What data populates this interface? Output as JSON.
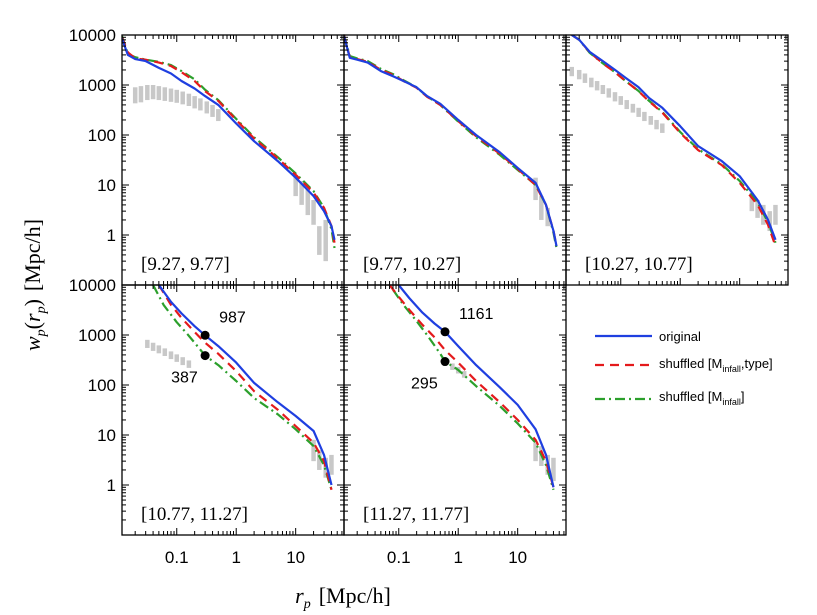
{
  "chart_data": {
    "type": "line",
    "ylabel_parts": {
      "w": "w",
      "w_sub": "p",
      "open": "(",
      "r": "r",
      "r_sub": "p",
      "close": ")",
      "unit": "[Mpc/h]"
    },
    "xlabel_parts": {
      "r": "r",
      "r_sub": "p",
      "unit": "[Mpc/h]"
    },
    "x_ticks": [
      {
        "v": 0.1,
        "label": "0.1"
      },
      {
        "v": 1,
        "label": "1"
      },
      {
        "v": 10,
        "label": "10"
      }
    ],
    "y_ticks": [
      {
        "v": 1,
        "label": "1"
      },
      {
        "v": 10,
        "label": "10"
      },
      {
        "v": 100,
        "label": "100"
      },
      {
        "v": 1000,
        "label": "1000"
      },
      {
        "v": 10000,
        "label": "10000"
      }
    ],
    "xlim": [
      0.012,
      65
    ],
    "ylim": [
      0.1,
      10000
    ],
    "legend": {
      "placement": "right of lower row",
      "items": [
        {
          "key": "original",
          "text": "original",
          "color": "#1f3fe0",
          "dash": "solid"
        },
        {
          "key": "shuffled_type",
          "text_parts": [
            "shuffled [M",
            "infall",
            ",type]"
          ],
          "color": "#e41a1c",
          "dash": "dashed"
        },
        {
          "key": "shuffled_m",
          "text_parts": [
            "shuffled [M",
            "infall",
            "]"
          ],
          "color": "#2ca02c",
          "dash": "dashdot"
        }
      ]
    },
    "colors": {
      "original": "#1f3fe0",
      "shuffled_type": "#e41a1c",
      "shuffled_m": "#2ca02c",
      "observed": "#c8c8c8",
      "marker": "#000000"
    },
    "panels": [
      {
        "label": "[9.27, 9.77]",
        "series": {
          "original": {
            "x": [
              0.012,
              0.015,
              0.02,
              0.03,
              0.05,
              0.08,
              0.12,
              0.2,
              0.3,
              0.5,
              1,
              2,
              5,
              10,
              20,
              30,
              40,
              45
            ],
            "y": [
              8500,
              4000,
              3300,
              3000,
              2200,
              1700,
              1200,
              850,
              600,
              400,
              170,
              75,
              30,
              14,
              6,
              3,
              1.5,
              0.8
            ]
          },
          "shuffled_type": {
            "x": [
              0.012,
              0.015,
              0.02,
              0.03,
              0.05,
              0.08,
              0.12,
              0.2,
              0.3,
              0.5,
              1,
              2,
              5,
              10,
              20,
              30,
              40,
              45
            ],
            "y": [
              9000,
              4500,
              3400,
              3200,
              2800,
              2400,
              1800,
              1200,
              750,
              480,
              200,
              85,
              34,
              16,
              7,
              3.5,
              1.5,
              0.7
            ]
          },
          "shuffled_m": {
            "x": [
              0.012,
              0.015,
              0.02,
              0.03,
              0.05,
              0.08,
              0.12,
              0.2,
              0.3,
              0.5,
              1,
              2,
              5,
              10,
              20,
              30,
              40,
              45
            ],
            "y": [
              9500,
              4200,
              3600,
              3200,
              2900,
              2500,
              1900,
              1300,
              800,
              500,
              210,
              90,
              36,
              17,
              7.5,
              3.5,
              1.3,
              0.55
            ]
          },
          "observed": {
            "x": [
              0.02,
              0.025,
              0.032,
              0.04,
              0.05,
              0.063,
              0.08,
              0.1,
              0.126,
              0.16,
              0.2,
              0.25,
              0.32,
              0.4,
              0.5,
              10,
              12.6,
              16,
              20,
              25,
              32
            ],
            "lo": [
              430,
              450,
              500,
              520,
              500,
              480,
              460,
              440,
              410,
              380,
              340,
              310,
              270,
              230,
              190,
              6,
              4,
              2.5,
              1.6,
              0.4,
              0.3
            ],
            "hi": [
              900,
              950,
              1000,
              1000,
              950,
              900,
              850,
              800,
              740,
              670,
              600,
              540,
              470,
              400,
              330,
              16,
              12,
              8,
              5,
              1.5,
              2
            ]
          }
        },
        "annotations": []
      },
      {
        "label": "[9.77, 10.27]",
        "series": {
          "original": {
            "x": [
              0.012,
              0.015,
              0.02,
              0.03,
              0.05,
              0.08,
              0.12,
              0.2,
              0.3,
              0.5,
              1,
              2,
              5,
              10,
              20,
              30,
              40,
              45
            ],
            "y": [
              9500,
              3500,
              3200,
              2800,
              1900,
              1500,
              1200,
              900,
              600,
              420,
              200,
              100,
              45,
              22,
              11,
              4,
              1.2,
              0.6
            ]
          },
          "shuffled_type": {
            "x": [
              0.012,
              0.015,
              0.02,
              0.03,
              0.05,
              0.08,
              0.12,
              0.2,
              0.3,
              0.5,
              1,
              2,
              5,
              10,
              20,
              30,
              40,
              45
            ],
            "y": [
              9800,
              3600,
              3300,
              2900,
              2000,
              1600,
              1200,
              880,
              580,
              400,
              190,
              95,
              42,
              21,
              10,
              4,
              1.2,
              0.6
            ]
          },
          "shuffled_m": {
            "x": [
              0.012,
              0.015,
              0.02,
              0.03,
              0.05,
              0.08,
              0.12,
              0.2,
              0.3,
              0.5,
              1,
              2,
              5,
              10,
              20,
              30,
              40,
              45
            ],
            "y": [
              10000,
              3800,
              3400,
              3000,
              2100,
              1650,
              1250,
              900,
              590,
              400,
              185,
              90,
              40,
              20,
              10,
              4,
              1.1,
              0.55
            ]
          },
          "observed": {
            "x": [
              20,
              25,
              32
            ],
            "lo": [
              5,
              2,
              1.5
            ],
            "hi": [
              14,
              6,
              3.5
            ]
          }
        },
        "annotations": []
      },
      {
        "label": "[10.27, 10.77]",
        "series": {
          "original": {
            "x": [
              0.015,
              0.02,
              0.03,
              0.05,
              0.08,
              0.12,
              0.2,
              0.3,
              0.5,
              1,
              2,
              5,
              10,
              20,
              30,
              40
            ],
            "y": [
              10000,
              8000,
              4600,
              3000,
              2000,
              1400,
              900,
              550,
              350,
              150,
              60,
              30,
              15,
              5,
              2,
              0.8
            ]
          },
          "shuffled_type": {
            "x": [
              0.015,
              0.02,
              0.03,
              0.05,
              0.08,
              0.12,
              0.2,
              0.3,
              0.5,
              1,
              2,
              5,
              10,
              20,
              30,
              40
            ],
            "y": [
              10000,
              8000,
              4500,
              2700,
              1800,
              1200,
              750,
              470,
              280,
              110,
              50,
              25,
              11,
              4,
              1.6,
              0.6
            ]
          },
          "shuffled_m": {
            "x": [
              0.015,
              0.02,
              0.03,
              0.05,
              0.08,
              0.12,
              0.2,
              0.3,
              0.5,
              1,
              2,
              5,
              10,
              20,
              30,
              40
            ],
            "y": [
              10000,
              8000,
              4400,
              2700,
              1800,
              1200,
              760,
              480,
              290,
              115,
              52,
              26,
              12,
              4.5,
              1.8,
              0.7
            ]
          },
          "observed": {
            "x": [
              0.015,
              0.02,
              0.025,
              0.032,
              0.04,
              0.05,
              0.063,
              0.08,
              0.1,
              0.126,
              0.16,
              0.2,
              0.25,
              0.32,
              0.4,
              0.5,
              16,
              20,
              25,
              32,
              40
            ],
            "lo": [
              1500,
              1300,
              1100,
              900,
              780,
              660,
              560,
              470,
              400,
              330,
              280,
              230,
              190,
              160,
              130,
              110,
              3,
              2.2,
              1.6,
              1.2,
              1.6
            ],
            "hi": [
              2300,
              2000,
              1700,
              1400,
              1200,
              1000,
              860,
              720,
              600,
              500,
              420,
              350,
              290,
              240,
              200,
              170,
              7,
              5,
              4,
              3,
              4
            ]
          }
        },
        "annotations": []
      },
      {
        "label": "[10.77, 11.27]",
        "series": {
          "original": {
            "x": [
              0.05,
              0.08,
              0.12,
              0.2,
              0.3,
              0.5,
              1,
              2,
              5,
              10,
              20,
              30,
              40
            ],
            "y": [
              10000,
              4600,
              2700,
              1500,
              987,
              600,
              280,
              110,
              45,
              24,
              12,
              4,
              1
            ]
          },
          "shuffled_type": {
            "x": [
              0.05,
              0.08,
              0.12,
              0.2,
              0.3,
              0.5,
              1,
              2,
              5,
              10,
              20,
              30,
              40
            ],
            "y": [
              10000,
              4000,
              2200,
              1150,
              700,
              420,
              190,
              75,
              32,
              15,
              7,
              3,
              0.8
            ]
          },
          "shuffled_m": {
            "x": [
              0.04,
              0.06,
              0.1,
              0.15,
              0.2,
              0.3,
              0.5,
              1,
              2,
              5,
              10,
              20,
              30,
              40
            ],
            "y": [
              10000,
              4000,
              1800,
              1050,
              700,
              387,
              250,
              120,
              55,
              26,
              13,
              6,
              2.5,
              0.8
            ]
          },
          "observed": {
            "x": [
              0.032,
              0.04,
              0.05,
              0.063,
              0.08,
              0.1,
              0.126,
              0.16,
              20,
              25,
              32,
              40
            ],
            "lo": [
              550,
              480,
              430,
              380,
              330,
              290,
              250,
              220,
              3,
              2,
              1.4,
              1.6
            ],
            "hi": [
              800,
              700,
              620,
              540,
              470,
              410,
              360,
              310,
              8,
              5,
              3.5,
              4
            ]
          }
        },
        "annotations": [
          {
            "x": 0.3,
            "y": 987,
            "text": "987",
            "side": "above-right"
          },
          {
            "x": 0.3,
            "y": 387,
            "text": "387",
            "side": "below-left"
          }
        ]
      },
      {
        "label": "[11.27, 11.77]",
        "series": {
          "original": {
            "x": [
              0.1,
              0.15,
              0.25,
              0.4,
              0.6,
              1,
              2,
              5,
              10,
              20,
              30,
              40
            ],
            "y": [
              10000,
              5500,
              2800,
              1700,
              1161,
              600,
              250,
              90,
              40,
              13,
              4,
              0.9
            ]
          },
          "shuffled_type": {
            "x": [
              0.07,
              0.1,
              0.15,
              0.25,
              0.4,
              0.6,
              1,
              2,
              5,
              10,
              20,
              30,
              40
            ],
            "y": [
              10000,
              5800,
              3200,
              1600,
              900,
              500,
              280,
              120,
              45,
              20,
              8,
              3,
              0.9
            ]
          },
          "shuffled_m": {
            "x": [
              0.08,
              0.12,
              0.2,
              0.3,
              0.5,
              0.6,
              1,
              2,
              5,
              10,
              20,
              30,
              40
            ],
            "y": [
              8000,
              4000,
              1900,
              1000,
              420,
              295,
              200,
              95,
              38,
              17,
              7,
              2.5,
              0.8
            ]
          },
          "observed": {
            "x": [
              0.6,
              0.8,
              1,
              1.26,
              20,
              25,
              32,
              40
            ],
            "lo": [
              240,
              200,
              170,
              140,
              3,
              2.4,
              1.6,
              1.2
            ],
            "hi": [
              320,
              270,
              230,
              190,
              7,
              6,
              4,
              3.5
            ]
          }
        },
        "annotations": [
          {
            "x": 0.6,
            "y": 1161,
            "text": "1161",
            "side": "above-right"
          },
          {
            "x": 0.6,
            "y": 295,
            "text": "295",
            "side": "below-left"
          }
        ]
      }
    ]
  }
}
